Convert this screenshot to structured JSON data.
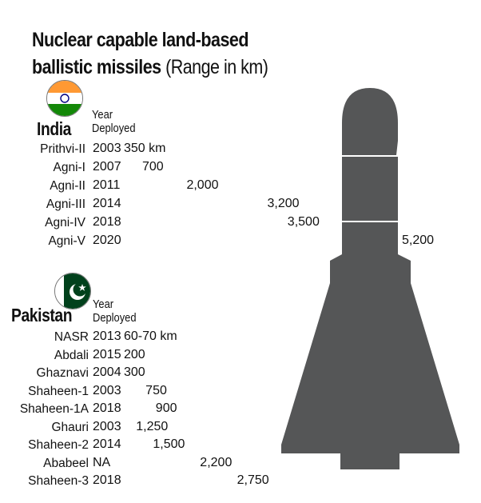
{
  "title": {
    "line1": "Nuclear capable land-based",
    "line2_bold": "ballistic missiles",
    "line2_normal": " (Range in km)"
  },
  "colors": {
    "bar": "#f2c21b",
    "missile": "#555657",
    "india_saffron": "#ff9933",
    "india_green": "#138808",
    "pakistan_green": "#01411c"
  },
  "icons": [
    "india-flag-icon",
    "pakistan-flag-icon",
    "missile-icon"
  ],
  "chart_data": [
    {
      "type": "bar",
      "title": "India",
      "column_header": "Year Deployed",
      "categories": [
        "Prithvi-II",
        "Agni-I",
        "Agni-II",
        "Agni-III",
        "Agni-IV",
        "Agni-V"
      ],
      "years": [
        "2003",
        "2007",
        "2011",
        "2014",
        "2018",
        "2020"
      ],
      "values": [
        350,
        700,
        2000,
        3200,
        3500,
        5200
      ],
      "value_labels": [
        "350 km",
        "700",
        "2,000",
        "3,200",
        "3,500",
        "5,200"
      ],
      "unit": "km"
    },
    {
      "type": "bar",
      "title": "Pakistan",
      "column_header": "Year Deployed",
      "categories": [
        "NASR",
        "Abdali",
        "Ghaznavi",
        "Shaheen-1",
        "Shaheen-1A",
        "Ghauri",
        "Shaheen-2",
        "Ababeel",
        "Shaheen-3"
      ],
      "years": [
        "2013",
        "2015",
        "2004",
        "2003",
        "2018",
        "2003",
        "2014",
        "NA",
        "2018"
      ],
      "values": [
        70,
        200,
        300,
        750,
        900,
        1250,
        1500,
        2200,
        2750
      ],
      "value_labels": [
        "60-70 km",
        "200",
        "300",
        "750",
        "900",
        "1,250",
        "1,500",
        "2,200",
        "2,750"
      ],
      "unit": "km"
    }
  ]
}
